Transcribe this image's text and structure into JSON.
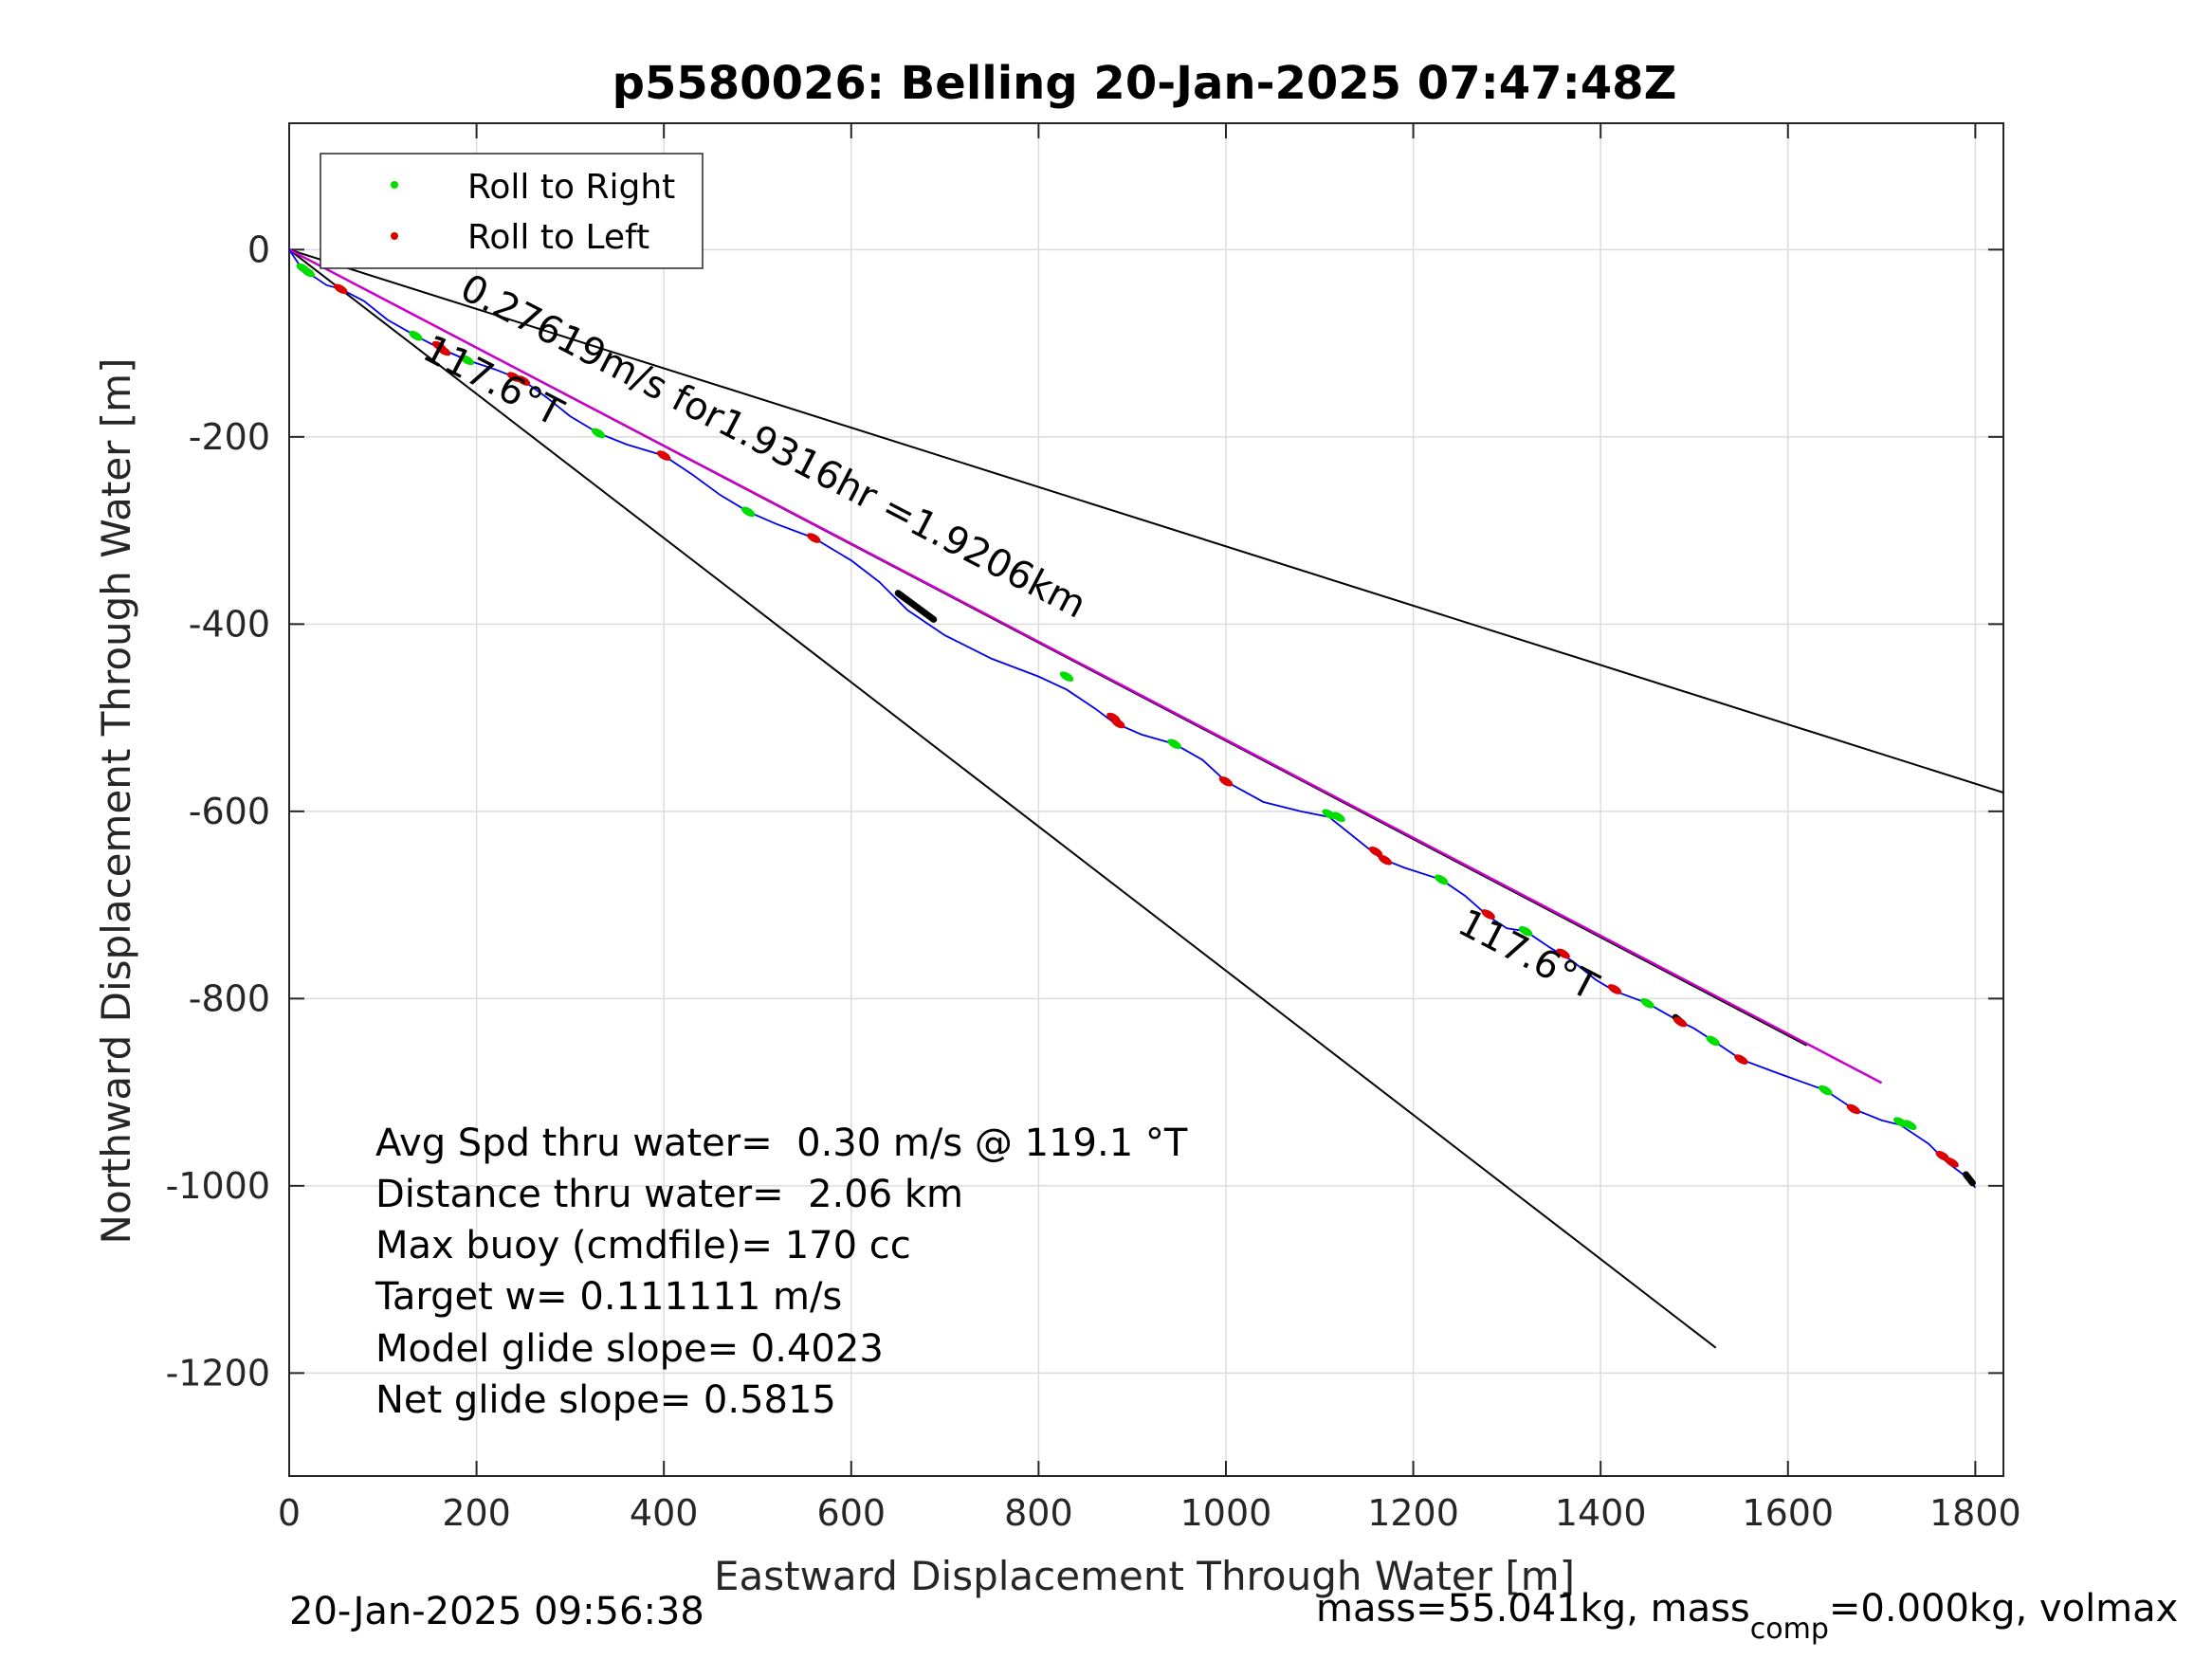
{
  "chart_data": {
    "type": "line",
    "title": "p5580026: Belling 20-Jan-2025 07:47:48Z",
    "xlabel": "Eastward Displacement Through Water [m]",
    "ylabel": "Northward Displacement Through Water [m]",
    "xlim": [
      0,
      1830
    ],
    "ylim": [
      -1310,
      135
    ],
    "xticks": [
      0,
      200,
      400,
      600,
      800,
      1000,
      1200,
      1400,
      1600,
      1800
    ],
    "yticks": [
      0,
      -200,
      -400,
      -600,
      -800,
      -1000,
      -1200
    ],
    "grid": true,
    "legend": {
      "placement": "top-left",
      "entries": [
        {
          "label": "Roll to Right",
          "color": "#00e000"
        },
        {
          "label": "Roll to Left",
          "color": "#e00000"
        }
      ]
    },
    "colors": {
      "track": "#0000ee",
      "right_roll": "#00dd00",
      "left_roll": "#dd0000",
      "average_line": "#cc00cc",
      "reference_lines": "#000000",
      "grid": "#dcdcdc"
    },
    "track": {
      "name": "",
      "x": [
        0,
        10,
        25,
        40,
        55,
        80,
        105,
        135,
        160,
        190,
        220,
        250,
        275,
        300,
        330,
        360,
        400,
        430,
        460,
        490,
        520,
        560,
        600,
        630,
        660,
        700,
        750,
        800,
        830,
        860,
        880,
        910,
        945,
        975,
        1000,
        1040,
        1080,
        1110,
        1140,
        1165,
        1190,
        1230,
        1255,
        1280,
        1300,
        1320,
        1345,
        1370,
        1395,
        1415,
        1450,
        1480,
        1500,
        1520,
        1550,
        1590,
        1640,
        1670,
        1700,
        1720,
        1750,
        1770,
        1790,
        1800
      ],
      "y": [
        0,
        -15,
        -28,
        -38,
        -42,
        -55,
        -75,
        -92,
        -105,
        -118,
        -128,
        -140,
        -158,
        -178,
        -196,
        -208,
        -220,
        -240,
        -262,
        -280,
        -293,
        -308,
        -332,
        -355,
        -385,
        -412,
        -437,
        -456,
        -470,
        -490,
        -505,
        -518,
        -528,
        -545,
        -568,
        -590,
        -600,
        -606,
        -630,
        -650,
        -660,
        -673,
        -690,
        -712,
        -725,
        -728,
        -745,
        -760,
        -780,
        -792,
        -805,
        -822,
        -832,
        -845,
        -865,
        -880,
        -898,
        -918,
        -930,
        -935,
        -955,
        -975,
        -990,
        -1002
      ]
    },
    "right_roll_x": [
      15,
      20,
      135,
      190,
      330,
      490,
      830,
      945,
      1110,
      1120,
      1230,
      1320,
      1450,
      1520,
      1640,
      1720,
      1730
    ],
    "right_roll_y": [
      -20,
      -24,
      -92,
      -118,
      -196,
      -280,
      -456,
      -528,
      -603,
      -606,
      -673,
      -728,
      -805,
      -845,
      -898,
      -932,
      -935
    ],
    "left_roll_x": [
      55,
      160,
      165,
      240,
      250,
      400,
      560,
      880,
      885,
      1000,
      1160,
      1170,
      1280,
      1360,
      1415,
      1485,
      1550,
      1670,
      1765,
      1775
    ],
    "left_roll_y": [
      -42,
      -103,
      -108,
      -136,
      -140,
      -220,
      -308,
      -500,
      -506,
      -568,
      -643,
      -652,
      -710,
      -752,
      -790,
      -825,
      -865,
      -918,
      -968,
      -975
    ],
    "black_segments": [
      {
        "x": [
          650,
          688
        ],
        "y": [
          -367,
          -395
        ]
      },
      {
        "x": [
          1480,
          1487
        ],
        "y": [
          -820,
          -826
        ]
      },
      {
        "x": [
          1790,
          1797
        ],
        "y": [
          -988,
          -997
        ]
      }
    ],
    "average_line": {
      "x": [
        0,
        1700
      ],
      "y": [
        0,
        -890
      ]
    },
    "reference_lines": [
      {
        "x": [
          0,
          1830
        ],
        "y": [
          0,
          -580
        ]
      },
      {
        "x": [
          0,
          1523
        ],
        "y": [
          0,
          -1173
        ]
      },
      {
        "x": [
          0,
          1620
        ],
        "y": [
          0,
          -850
        ]
      }
    ],
    "annotations": [
      {
        "text": "0.27619m/s for1.9316hr =1.9206km",
        "x": 180,
        "y": -50,
        "angle": 27.5
      },
      {
        "text": "117.6°T",
        "x": 140,
        "y": -115,
        "angle": 27.5
      },
      {
        "text": "117.6°T",
        "x": 1245,
        "y": -728,
        "angle": 27.5
      }
    ],
    "stats": [
      "Avg Spd thru water=  0.30 m/s @ 119.1 °T",
      "Distance thru water=  2.06 km",
      "Max buoy (cmdfile)= 170 cc",
      "Target w= 0.111111 m/s",
      "Model glide slope= 0.4023",
      "Net glide slope= 0.5815"
    ]
  },
  "footer": {
    "timestamp": "20-Jan-2025 09:56:38",
    "mass_prefix": "mass=55.041kg, mass",
    "mass_sub": "comp",
    "mass_suffix": "=0.000kg, volmax"
  }
}
